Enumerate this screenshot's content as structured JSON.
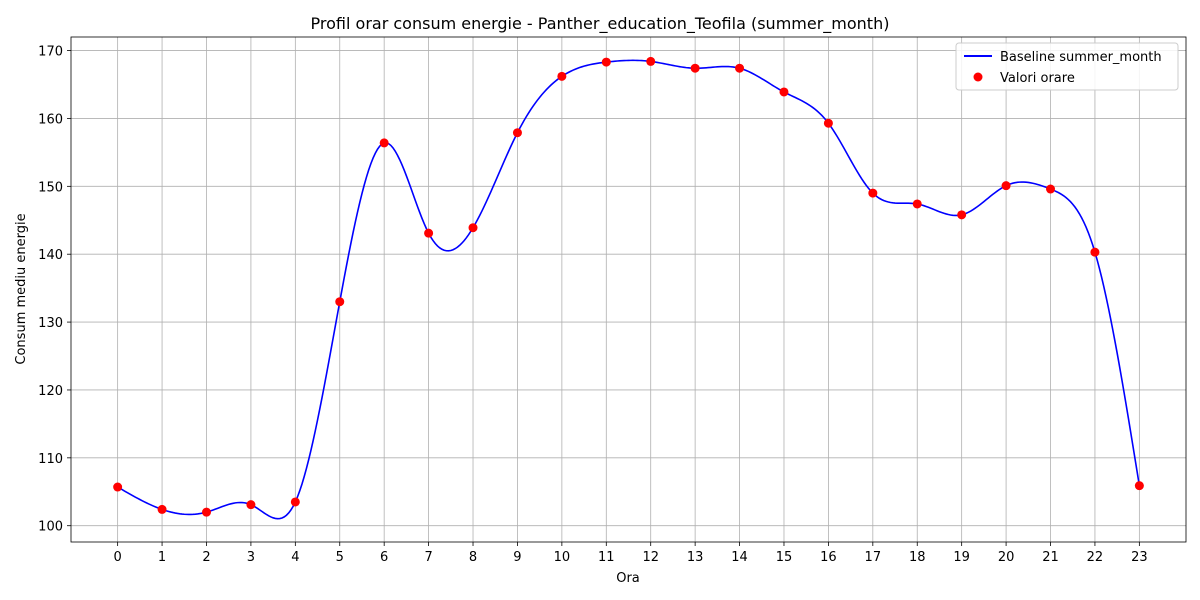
{
  "chart_data": {
    "type": "line",
    "title": "Profil orar consum energie - Panther_education_Teofila (summer_month)",
    "xlabel": "Ora",
    "ylabel": "Consum mediu energie",
    "x": [
      0,
      1,
      2,
      3,
      4,
      5,
      6,
      7,
      8,
      9,
      10,
      11,
      12,
      13,
      14,
      15,
      16,
      17,
      18,
      19,
      20,
      21,
      22,
      23
    ],
    "xticks": [
      "0",
      "1",
      "2",
      "3",
      "4",
      "5",
      "6",
      "7",
      "8",
      "9",
      "10",
      "11",
      "12",
      "13",
      "14",
      "15",
      "16",
      "17",
      "18",
      "19",
      "20",
      "21",
      "22",
      "23"
    ],
    "yticks": [
      "100",
      "110",
      "120",
      "130",
      "140",
      "150",
      "160",
      "170"
    ],
    "xlim": [
      -1.05,
      24.05
    ],
    "ylim": [
      97.6,
      172.0
    ],
    "grid": true,
    "legend_position": "top-right",
    "series": [
      {
        "name": "Baseline summer_month",
        "kind": "smooth-line",
        "color": "#0000ff",
        "values": [
          105.7,
          102.4,
          102.0,
          103.1,
          103.5,
          133.0,
          156.4,
          143.1,
          143.9,
          157.9,
          166.2,
          168.3,
          168.4,
          167.4,
          167.4,
          163.9,
          159.3,
          149.0,
          147.4,
          145.8,
          150.1,
          149.6,
          140.3,
          105.9
        ]
      },
      {
        "name": "Valori orare",
        "kind": "scatter",
        "color": "#ff0000",
        "values": [
          105.7,
          102.4,
          102.0,
          103.1,
          103.5,
          133.0,
          156.4,
          143.1,
          143.9,
          157.9,
          166.2,
          168.3,
          168.4,
          167.4,
          167.4,
          163.9,
          159.3,
          149.0,
          147.4,
          145.8,
          150.1,
          149.6,
          140.3,
          105.9
        ]
      }
    ]
  }
}
